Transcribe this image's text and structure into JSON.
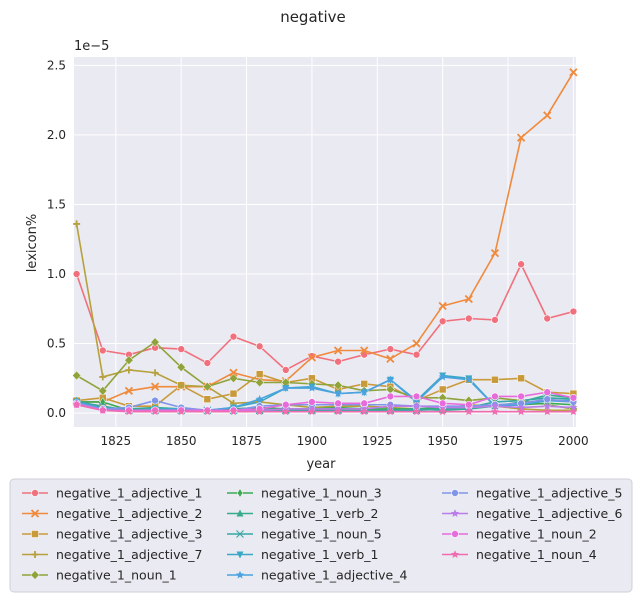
{
  "chart_data": {
    "type": "line",
    "title": "negative",
    "xlabel": "year",
    "ylabel": "lexicon%",
    "y_scale_label": "1e−5",
    "xlim": [
      1809,
      2001
    ],
    "ylim": [
      -0.1,
      2.56
    ],
    "x_ticks": [
      1825,
      1850,
      1875,
      1900,
      1925,
      1950,
      1975,
      2000
    ],
    "y_ticks": [
      0.0,
      0.5,
      1.0,
      1.5,
      2.0,
      2.5
    ],
    "y_tick_labels": [
      "0.0",
      "0.5",
      "1.0",
      "1.5",
      "2.0",
      "2.5"
    ],
    "grid": true,
    "legend_position": "bottom",
    "x": [
      1810,
      1820,
      1830,
      1840,
      1850,
      1860,
      1870,
      1880,
      1890,
      1900,
      1910,
      1920,
      1930,
      1940,
      1950,
      1960,
      1970,
      1980,
      1990,
      2000
    ],
    "series": [
      {
        "name": "negative_1_adjective_1",
        "color": "#f0717d",
        "marker": "circle",
        "values": [
          1.0,
          0.45,
          0.42,
          0.47,
          0.46,
          0.36,
          0.55,
          0.48,
          0.31,
          0.41,
          0.37,
          0.42,
          0.46,
          0.42,
          0.66,
          0.68,
          0.67,
          1.07,
          0.68,
          0.73
        ]
      },
      {
        "name": "negative_1_adjective_2",
        "color": "#f08a3c",
        "marker": "x",
        "values": [
          0.08,
          0.08,
          0.16,
          0.19,
          0.19,
          0.19,
          0.29,
          0.24,
          0.23,
          0.4,
          0.45,
          0.45,
          0.39,
          0.5,
          0.77,
          0.82,
          1.15,
          1.98,
          2.14,
          2.45
        ]
      },
      {
        "name": "negative_1_adjective_3",
        "color": "#c99a3a",
        "marker": "square",
        "values": [
          0.09,
          0.11,
          0.05,
          0.05,
          0.2,
          0.1,
          0.14,
          0.28,
          0.22,
          0.25,
          0.17,
          0.21,
          0.19,
          0.09,
          0.17,
          0.24,
          0.24,
          0.25,
          0.15,
          0.14
        ]
      },
      {
        "name": "negative_1_adjective_7",
        "color": "#b6a13c",
        "marker": "plus",
        "values": [
          1.36,
          0.26,
          0.31,
          0.29,
          0.2,
          0.19,
          0.07,
          0.08,
          0.06,
          0.04,
          0.05,
          0.05,
          0.04,
          0.03,
          0.03,
          0.06,
          0.05,
          0.03,
          0.02,
          0.02
        ]
      },
      {
        "name": "negative_1_noun_1",
        "color": "#8ea33a",
        "marker": "diamond",
        "values": [
          0.27,
          0.16,
          0.38,
          0.51,
          0.33,
          0.19,
          0.25,
          0.22,
          0.22,
          0.21,
          0.2,
          0.16,
          0.17,
          0.11,
          0.11,
          0.09,
          0.11,
          0.09,
          0.06,
          0.03
        ]
      },
      {
        "name": "negative_1_noun_3",
        "color": "#3ca954",
        "marker": "thin-diamond",
        "values": [
          0.08,
          0.08,
          0.02,
          0.03,
          0.02,
          0.02,
          0.03,
          0.04,
          0.03,
          0.03,
          0.04,
          0.03,
          0.03,
          0.03,
          0.04,
          0.04,
          0.05,
          0.06,
          0.07,
          0.06
        ]
      },
      {
        "name": "negative_1_verb_2",
        "color": "#36ab8e",
        "marker": "triangle-up",
        "values": [
          0.09,
          0.04,
          0.03,
          0.04,
          0.03,
          0.02,
          0.02,
          0.03,
          0.02,
          0.02,
          0.02,
          0.02,
          0.02,
          0.03,
          0.02,
          0.03,
          0.05,
          0.08,
          0.13,
          0.11
        ]
      },
      {
        "name": "negative_1_noun_5",
        "color": "#38a7a3",
        "marker": "x-thin",
        "values": [
          0.08,
          0.05,
          0.02,
          0.02,
          0.02,
          0.02,
          0.02,
          0.02,
          0.02,
          0.02,
          0.02,
          0.02,
          0.02,
          0.02,
          0.03,
          0.04,
          0.08,
          0.09,
          0.11,
          0.1
        ]
      },
      {
        "name": "negative_1_verb_1",
        "color": "#3aa8c4",
        "marker": "triangle-down",
        "values": [
          0.08,
          0.03,
          0.02,
          0.03,
          0.03,
          0.02,
          0.04,
          0.08,
          0.18,
          0.19,
          0.14,
          0.15,
          0.24,
          0.09,
          0.27,
          0.25,
          0.05,
          0.06,
          0.09,
          0.09
        ]
      },
      {
        "name": "negative_1_adjective_4",
        "color": "#4ba2e0",
        "marker": "star",
        "values": [
          0.08,
          0.03,
          0.02,
          0.02,
          0.03,
          0.02,
          0.04,
          0.1,
          0.18,
          0.18,
          0.14,
          0.15,
          0.24,
          0.08,
          0.26,
          0.24,
          0.05,
          0.06,
          0.09,
          0.08
        ]
      },
      {
        "name": "negative_1_adjective_5",
        "color": "#8095e8",
        "marker": "circle",
        "values": [
          0.07,
          0.03,
          0.04,
          0.09,
          0.04,
          0.02,
          0.02,
          0.05,
          0.06,
          0.06,
          0.06,
          0.06,
          0.06,
          0.05,
          0.05,
          0.05,
          0.06,
          0.07,
          0.1,
          0.08
        ]
      },
      {
        "name": "negative_1_adjective_6",
        "color": "#bb7ee8",
        "marker": "star",
        "values": [
          0.07,
          0.02,
          0.02,
          0.02,
          0.02,
          0.02,
          0.02,
          0.02,
          0.03,
          0.03,
          0.03,
          0.03,
          0.05,
          0.05,
          0.04,
          0.04,
          0.05,
          0.04,
          0.05,
          0.04
        ]
      },
      {
        "name": "negative_1_noun_2",
        "color": "#e86bdc",
        "marker": "circle",
        "values": [
          0.06,
          0.02,
          0.02,
          0.02,
          0.02,
          0.02,
          0.02,
          0.03,
          0.06,
          0.08,
          0.07,
          0.07,
          0.12,
          0.12,
          0.07,
          0.06,
          0.12,
          0.12,
          0.15,
          0.11
        ]
      },
      {
        "name": "negative_1_noun_4",
        "color": "#f06cb0",
        "marker": "star",
        "values": [
          0.06,
          0.02,
          0.01,
          0.01,
          0.01,
          0.01,
          0.01,
          0.01,
          0.01,
          0.01,
          0.01,
          0.01,
          0.01,
          0.01,
          0.01,
          0.01,
          0.01,
          0.01,
          0.01,
          0.01
        ]
      }
    ]
  }
}
